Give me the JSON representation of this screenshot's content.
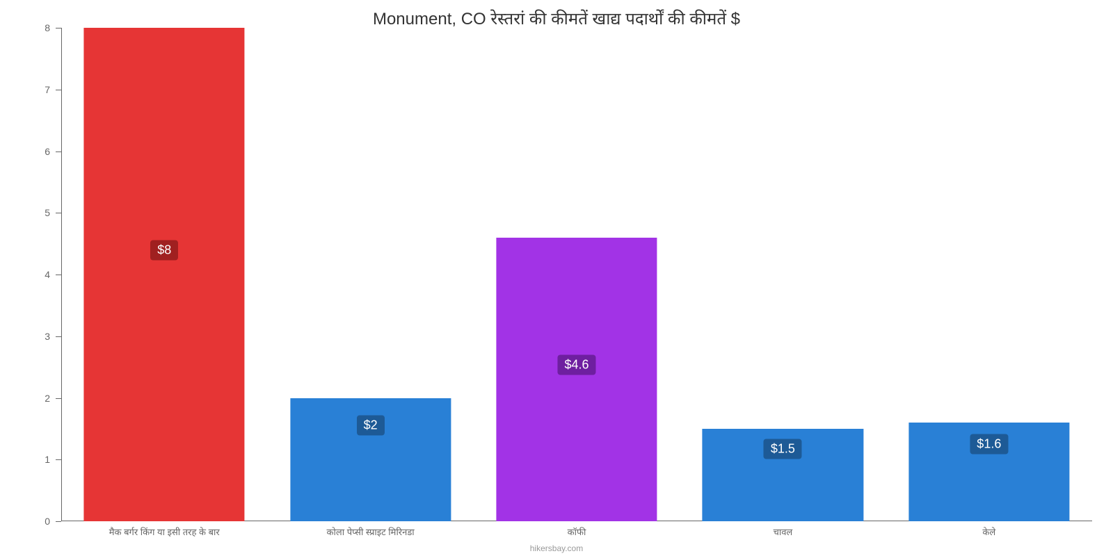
{
  "chart": {
    "type": "bar",
    "title": "Monument, CO रेस्तरां की कीमतें खाद्य पदार्थों की कीमतें $",
    "title_fontsize": 24,
    "title_color": "#333333",
    "background_color": "#ffffff",
    "axis_color": "#666666",
    "categories": [
      "मैक बर्गर किंग या इसी तरह के बार",
      "कोला पेप्सी स्प्राइट मिरिनडा",
      "कॉफी",
      "चावल",
      "केले"
    ],
    "values": [
      8,
      2,
      4.6,
      1.5,
      1.6
    ],
    "value_labels": [
      "$8",
      "$2",
      "$4.6",
      "$1.5",
      "$1.6"
    ],
    "bar_colors": [
      "#e63535",
      "#2980d6",
      "#a233e6",
      "#2980d6",
      "#2980d6"
    ],
    "label_bg_colors": [
      "#a02020",
      "#1d5a96",
      "#6e1fa0",
      "#1d5a96",
      "#1d5a96"
    ],
    "ylim": [
      0,
      8
    ],
    "ytick_step": 1,
    "yticks": [
      0,
      1,
      2,
      3,
      4,
      5,
      6,
      7,
      8
    ],
    "bar_width": 0.78,
    "label_fontsize": 18,
    "xlabel_fontsize": 13,
    "ylabel_fontsize": 14,
    "attribution": "hikersbay.com"
  }
}
